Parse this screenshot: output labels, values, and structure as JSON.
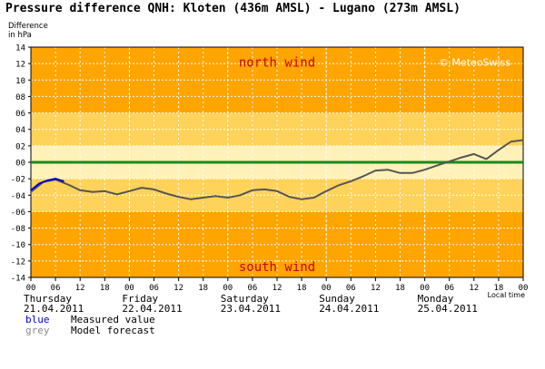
{
  "title": "Pressure difference QNH: Kloten (436m AMSL) - Lugano (273m AMSL)",
  "ylabel": [
    "Difference",
    "in hPa"
  ],
  "legend": [
    {
      "key": "blue",
      "label": "Measured value",
      "color": "#0000cc"
    },
    {
      "key": "grey",
      "label": "Model forecast",
      "color": "#555555"
    }
  ],
  "annotations": {
    "top": "north wind",
    "bottom": "south wind",
    "copyright": "© MeteoSwiss"
  },
  "chart_data": {
    "type": "line",
    "title": "Pressure difference QNH: Kloten (436m AMSL) - Lugano (273m AMSL)",
    "ylabel": "Difference in hPa",
    "xlabel": "Local time",
    "ylim": [
      -14,
      14
    ],
    "xlim_hours": [
      0,
      120
    ],
    "y_ticks": [
      "14",
      "12",
      "10",
      "08",
      "06",
      "04",
      "02",
      "00",
      "-02",
      "-04",
      "-06",
      "-08",
      "-10",
      "-12",
      "-14"
    ],
    "x_tick_labels": [
      "00",
      "06",
      "12",
      "18",
      "00",
      "06",
      "12",
      "18",
      "00",
      "06",
      "12",
      "18",
      "00",
      "06",
      "12",
      "18",
      "00",
      "06",
      "12",
      "18",
      "00"
    ],
    "days": [
      {
        "name": "Thursday",
        "date": "21.04.2011"
      },
      {
        "name": "Friday",
        "date": "22.04.2011"
      },
      {
        "name": "Saturday",
        "date": "23.04.2011"
      },
      {
        "name": "Sunday",
        "date": "24.04.2011"
      },
      {
        "name": "Monday",
        "date": "25.04.2011"
      }
    ],
    "zero_line": 0,
    "background_bands": [
      {
        "from": 14,
        "to": 6,
        "color": "#ffa500"
      },
      {
        "from": 6,
        "to": 2,
        "color": "#ffd25a"
      },
      {
        "from": 2,
        "to": -2,
        "color": "#fff1b8"
      },
      {
        "from": -2,
        "to": -6,
        "color": "#ffd25a"
      },
      {
        "from": -6,
        "to": -14,
        "color": "#ffa500"
      }
    ],
    "series": [
      {
        "name": "Model forecast",
        "color": "#555555",
        "x": [
          0,
          3,
          6,
          9,
          12,
          15,
          18,
          21,
          24,
          27,
          30,
          33,
          36,
          39,
          42,
          45,
          48,
          51,
          54,
          57,
          60,
          63,
          66,
          69,
          72,
          75,
          78,
          81,
          84,
          87,
          90,
          93,
          96,
          99,
          102,
          105,
          108,
          111,
          114,
          117,
          120
        ],
        "y": [
          -3.6,
          -2.4,
          -2.1,
          -2.7,
          -3.4,
          -3.6,
          -3.5,
          -3.9,
          -3.5,
          -3.1,
          -3.3,
          -3.8,
          -4.2,
          -4.5,
          -4.3,
          -4.1,
          -4.3,
          -4.0,
          -3.4,
          -3.3,
          -3.5,
          -4.2,
          -4.5,
          -4.3,
          -3.5,
          -2.8,
          -2.3,
          -1.7,
          -1.0,
          -0.9,
          -1.3,
          -1.3,
          -0.9,
          -0.4,
          0.1,
          0.6,
          1.0,
          0.4,
          1.5,
          2.5,
          2.7
        ]
      },
      {
        "name": "Measured value",
        "color": "#0000cc",
        "x": [
          0,
          2,
          4,
          6,
          8
        ],
        "y": [
          -3.4,
          -2.6,
          -2.2,
          -2.0,
          -2.3
        ]
      }
    ]
  }
}
